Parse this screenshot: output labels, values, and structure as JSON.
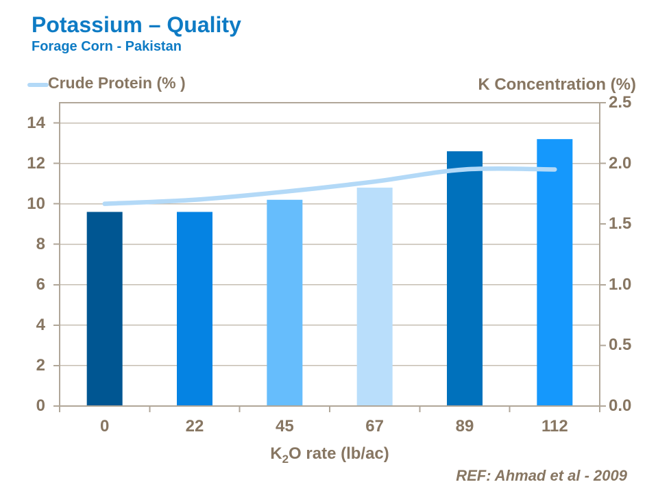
{
  "header": {
    "title": "Potassium – Quality",
    "subtitle": "Forage Corn - Pakistan"
  },
  "legend": {
    "crude_protein_label": "Crude Protein (% )"
  },
  "axes": {
    "right_title": "K Concentration (%)",
    "x_title_pre": "K",
    "x_title_sub": "2",
    "x_title_post": "O rate (lb/ac)"
  },
  "footer": {
    "reference": "REF: Ahmad et al - 2009"
  },
  "colors": {
    "title_blue": "#0e7bc4",
    "axis_text": "#877662",
    "plot_border": "#b0a698",
    "gridline": "#c6beb2",
    "line_series": "#b3d9f7",
    "background": "#ffffff"
  },
  "chart_data": {
    "type": "combo",
    "title": "Potassium – Quality",
    "subtitle": "Forage Corn - Pakistan",
    "categories": [
      "0",
      "22",
      "45",
      "67",
      "89",
      "112"
    ],
    "xlabel": "K2O rate (lb/ac)",
    "left_axis": {
      "label": "",
      "series_measured": "Crude Protein (%)",
      "min": 0,
      "max": 15,
      "ticks": [
        0,
        2,
        4,
        6,
        8,
        10,
        12,
        14
      ],
      "tick_labels": [
        "0",
        "2",
        "4",
        "6",
        "8",
        "10",
        "12",
        "14"
      ]
    },
    "right_axis": {
      "label": "K Concentration (%)",
      "series_measured": "K Concentration (%)",
      "min": 0,
      "max": 2.5,
      "ticks": [
        0,
        0.5,
        1.0,
        1.5,
        2.0,
        2.5
      ],
      "tick_labels": [
        "0.0",
        "0.5",
        "1.0",
        "1.5",
        "2.0",
        "2.5"
      ]
    },
    "series": [
      {
        "name": "K Concentration (%)",
        "type": "bar",
        "axis": "right",
        "values": [
          1.6,
          1.6,
          1.7,
          1.8,
          2.1,
          2.2
        ],
        "bar_colors": [
          "#005692",
          "#0583e3",
          "#66bdfc",
          "#b9defb",
          "#0071bc",
          "#1598fc"
        ]
      },
      {
        "name": "Crude Protein (%)",
        "type": "line",
        "axis": "left",
        "smooth": true,
        "values": [
          10.0,
          10.2,
          10.6,
          11.1,
          11.7,
          11.7
        ],
        "color": "#b3d9f7"
      }
    ],
    "grid": {
      "horizontal": true,
      "vertical": false,
      "gridlines_at_left_ticks": true
    },
    "legend_position": "top-left"
  }
}
